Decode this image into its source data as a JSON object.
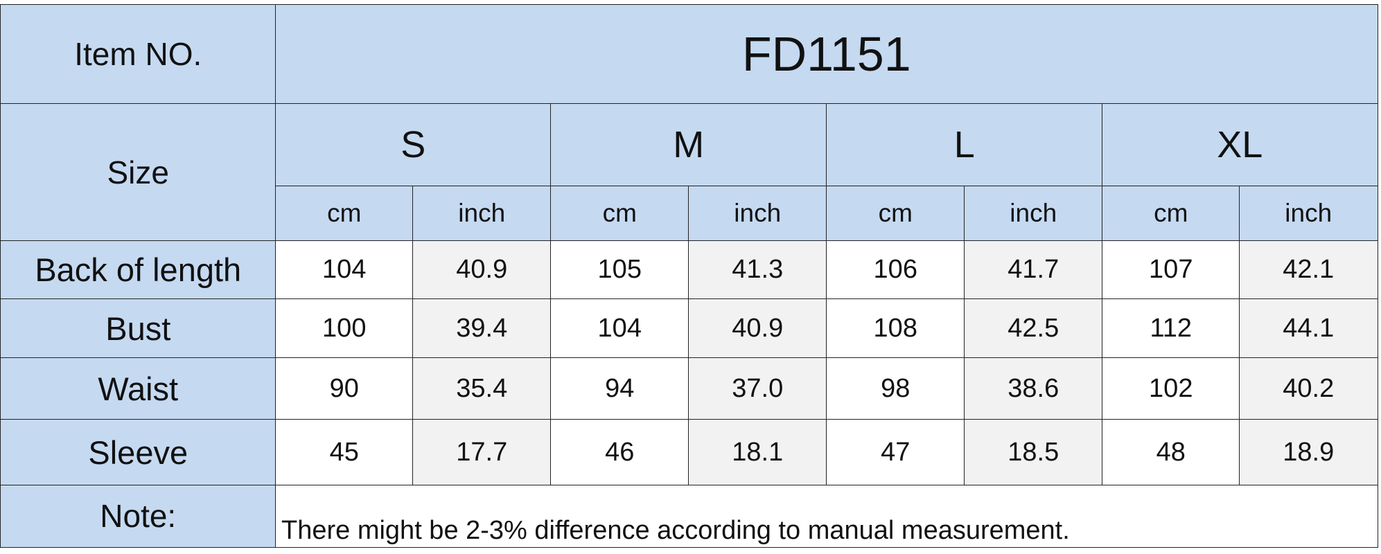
{
  "header": {
    "item_label": "Item NO.",
    "item_value": "FD1151",
    "size_label": "Size",
    "sizes": [
      "S",
      "M",
      "L",
      "XL"
    ],
    "units": [
      "cm",
      "inch",
      "cm",
      "inch",
      "cm",
      "inch",
      "cm",
      "inch"
    ]
  },
  "rows": [
    {
      "label": "Back of length",
      "values": [
        "104",
        "40.9",
        "105",
        "41.3",
        "106",
        "41.7",
        "107",
        "42.1"
      ]
    },
    {
      "label": "Bust",
      "values": [
        "100",
        "39.4",
        "104",
        "40.9",
        "108",
        "42.5",
        "112",
        "44.1"
      ]
    },
    {
      "label": "Waist",
      "values": [
        "90",
        "35.4",
        "94",
        "37.0",
        "98",
        "38.6",
        "102",
        "40.2"
      ]
    },
    {
      "label": "Sleeve",
      "values": [
        "45",
        "17.7",
        "46",
        "18.1",
        "47",
        "18.5",
        "48",
        "18.9"
      ]
    }
  ],
  "note": {
    "label": "Note:",
    "text": "There might be 2-3% difference according to manual measurement."
  }
}
